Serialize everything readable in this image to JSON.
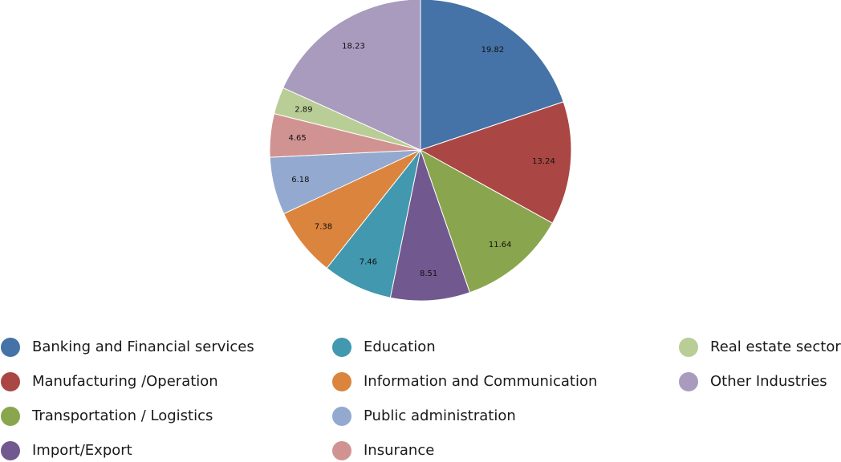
{
  "chart_data": {
    "type": "pie",
    "start_angle_deg": 0,
    "direction": "clockwise",
    "legend_position": "bottom",
    "legend_columns": 3,
    "slices": [
      {
        "label": "Banking and Financial services",
        "value": 19.82,
        "color": "#4572A7"
      },
      {
        "label": "Manufacturing /Operation",
        "value": 13.24,
        "color": "#AA4643"
      },
      {
        "label": "Transportation / Logistics",
        "value": 11.64,
        "color": "#89A54E"
      },
      {
        "label": "Import/Export",
        "value": 8.51,
        "color": "#71588F"
      },
      {
        "label": "Education",
        "value": 7.46,
        "color": "#4198AF"
      },
      {
        "label": "Information and Communication",
        "value": 7.38,
        "color": "#DB843D"
      },
      {
        "label": "Public administration",
        "value": 6.18,
        "color": "#93A9CF"
      },
      {
        "label": "Insurance",
        "value": 4.65,
        "color": "#D19392"
      },
      {
        "label": "Real estate sector",
        "value": 2.89,
        "color": "#B9CD96"
      },
      {
        "label": "Other Industries",
        "value": 18.23,
        "color": "#A99BBD"
      }
    ]
  }
}
